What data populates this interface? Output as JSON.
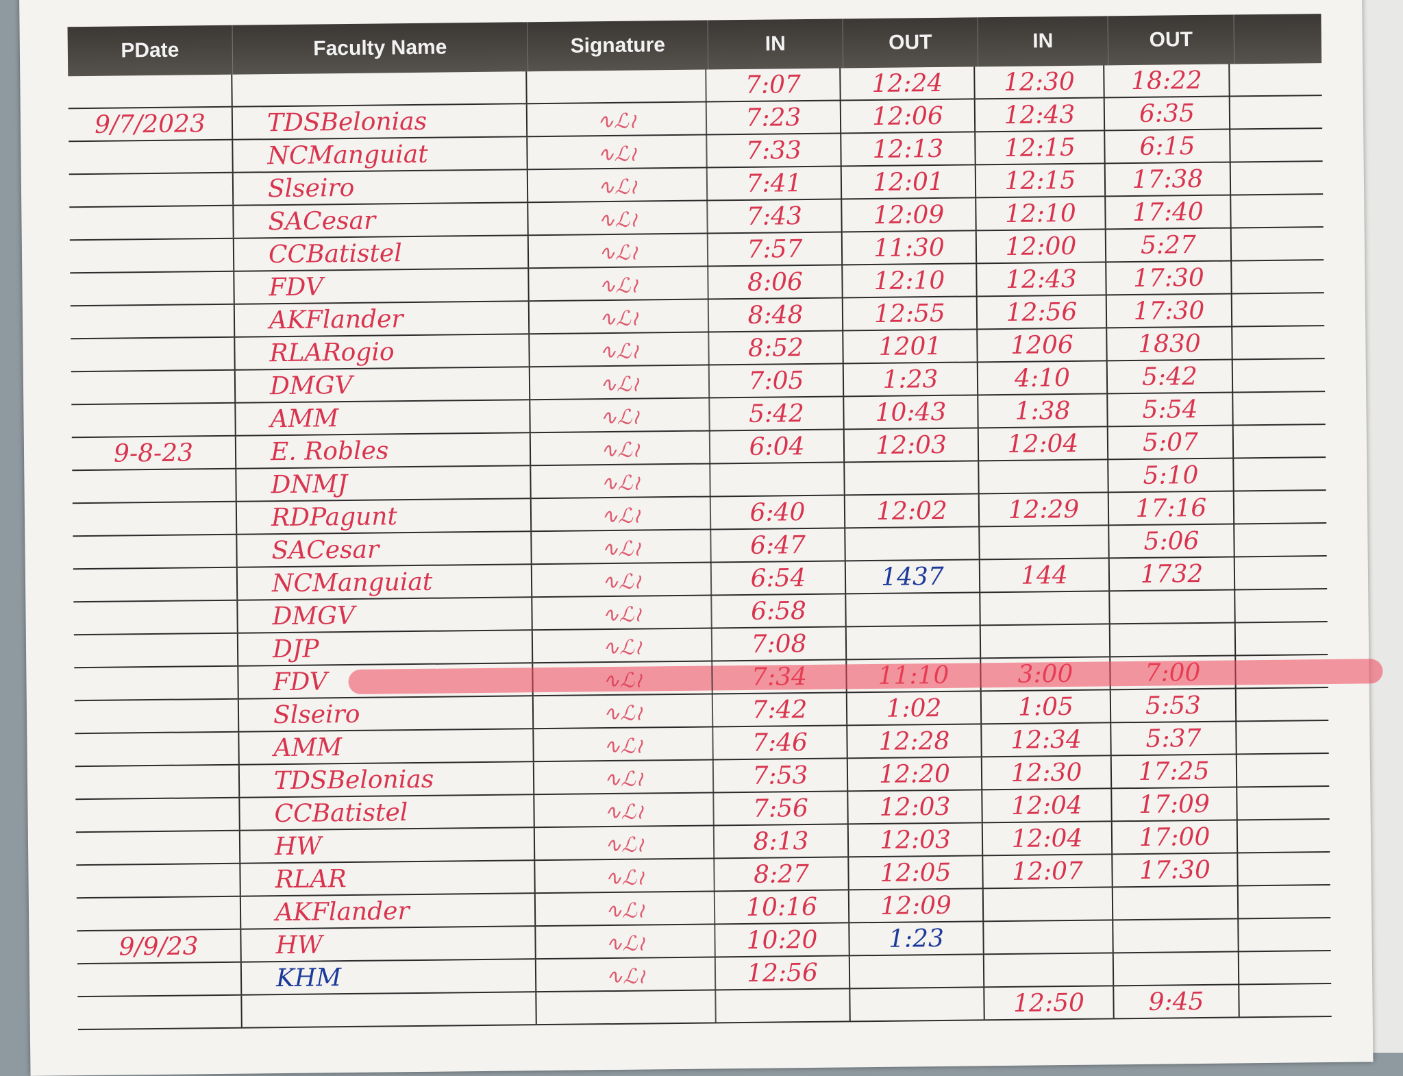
{
  "header": {
    "columns": [
      "PDate",
      "Faculty Name",
      "Signature",
      "IN",
      "OUT",
      "IN",
      "OUT"
    ]
  },
  "colors": {
    "ink_red": "#d9344e",
    "ink_blue": "#1d3a9a",
    "highlight": "#f0465a",
    "header_band": "#3b3835"
  },
  "rows": [
    {
      "date": "",
      "name": "",
      "in1": "7:07",
      "out1": "12:24",
      "in2": "12:30",
      "out2": "18:22"
    },
    {
      "date": "9/7/2023",
      "name": "TDSBelonias",
      "in1": "7:23",
      "out1": "12:06",
      "in2": "12:43",
      "out2": "6:35"
    },
    {
      "date": "",
      "name": "NCManguiat",
      "in1": "7:33",
      "out1": "12:13",
      "in2": "12:15",
      "out2": "6:15"
    },
    {
      "date": "",
      "name": "Slseiro",
      "in1": "7:41",
      "out1": "12:01",
      "in2": "12:15",
      "out2": "17:38"
    },
    {
      "date": "",
      "name": "SACesar",
      "in1": "7:43",
      "out1": "12:09",
      "in2": "12:10",
      "out2": "17:40"
    },
    {
      "date": "",
      "name": "CCBatistel",
      "in1": "7:57",
      "out1": "11:30",
      "in2": "12:00",
      "out2": "5:27"
    },
    {
      "date": "",
      "name": "FDV",
      "in1": "8:06",
      "out1": "12:10",
      "in2": "12:43",
      "out2": "17:30"
    },
    {
      "date": "",
      "name": "AKFlander",
      "in1": "8:48",
      "out1": "12:55",
      "in2": "12:56",
      "out2": "17:30"
    },
    {
      "date": "",
      "name": "RLARogio",
      "in1": "8:52",
      "out1": "1201",
      "in2": "1206",
      "out2": "1830"
    },
    {
      "date": "",
      "name": "DMGV",
      "in1": "7:05",
      "out1": "1:23",
      "in2": "4:10",
      "out2": "5:42"
    },
    {
      "date": "",
      "name": "AMM",
      "in1": "5:42",
      "out1": "10:43",
      "in2": "1:38",
      "out2": "5:54"
    },
    {
      "date": "9-8-23",
      "name": "E. Robles",
      "in1": "6:04",
      "out1": "12:03",
      "in2": "12:04",
      "out2": "5:07"
    },
    {
      "date": "",
      "name": "DNMJ",
      "in1": "",
      "out1": "",
      "in2": "",
      "out2": "5:10"
    },
    {
      "date": "",
      "name": "RDPagunt",
      "in1": "6:40",
      "out1": "12:02",
      "in2": "12:29",
      "out2": "17:16"
    },
    {
      "date": "",
      "name": "SACesar",
      "in1": "6:47",
      "out1": "",
      "in2": "",
      "out2": "5:06"
    },
    {
      "date": "",
      "name": "NCManguiat",
      "in1": "6:54",
      "out1": "1437",
      "in2": "144",
      "out2": "1732"
    },
    {
      "date": "",
      "name": "DMGV",
      "in1": "6:58",
      "out1": "",
      "in2": "",
      "out2": ""
    },
    {
      "date": "",
      "name": "DJP",
      "in1": "7:08",
      "out1": "",
      "in2": "",
      "out2": ""
    },
    {
      "date": "",
      "name": "FDV",
      "in1": "7:34",
      "out1": "11:10",
      "in2": "3:00",
      "out2": "7:00"
    },
    {
      "date": "",
      "name": "Slseiro",
      "in1": "7:42",
      "out1": "1:02",
      "in2": "1:05",
      "out2": "5:53"
    },
    {
      "date": "",
      "name": "AMM",
      "in1": "7:46",
      "out1": "12:28",
      "in2": "12:34",
      "out2": "5:37"
    },
    {
      "date": "",
      "name": "TDSBelonias",
      "in1": "7:53",
      "out1": "12:20",
      "in2": "12:30",
      "out2": "17:25"
    },
    {
      "date": "",
      "name": "CCBatistel",
      "in1": "7:56",
      "out1": "12:03",
      "in2": "12:04",
      "out2": "17:09"
    },
    {
      "date": "",
      "name": "HW",
      "in1": "8:13",
      "out1": "12:03",
      "in2": "12:04",
      "out2": "17:00"
    },
    {
      "date": "",
      "name": "RLAR",
      "in1": "8:27",
      "out1": "12:05",
      "in2": "12:07",
      "out2": "17:30"
    },
    {
      "date": "",
      "name": "AKFlander",
      "in1": "10:16",
      "out1": "12:09",
      "in2": "",
      "out2": ""
    },
    {
      "date": "9/9/23",
      "name": "HW",
      "in1": "10:20",
      "out1": "1:23",
      "in2": "",
      "out2": ""
    },
    {
      "date": "",
      "name": "KHM",
      "in1": "12:56",
      "out1": "",
      "in2": "",
      "out2": ""
    },
    {
      "date": "",
      "name": "",
      "in1": "",
      "out1": "",
      "in2": "12:50",
      "out2": "9:45"
    }
  ]
}
